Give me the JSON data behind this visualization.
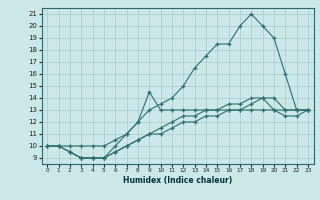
{
  "xlabel": "Humidex (Indice chaleur)",
  "bg_color": "#cce8e8",
  "line_color": "#2d7070",
  "grid_color": "#aacccc",
  "xlim": [
    -0.5,
    23.5
  ],
  "ylim": [
    8.5,
    21.5
  ],
  "yticks": [
    9,
    10,
    11,
    12,
    13,
    14,
    15,
    16,
    17,
    18,
    19,
    20,
    21
  ],
  "xticks": [
    0,
    1,
    2,
    3,
    4,
    5,
    6,
    7,
    8,
    9,
    10,
    11,
    12,
    13,
    14,
    15,
    16,
    17,
    18,
    19,
    20,
    21,
    22,
    23
  ],
  "series": [
    {
      "x": [
        0,
        1,
        2,
        3,
        4,
        5,
        6,
        7,
        8,
        9,
        10,
        11,
        12,
        13,
        14,
        15,
        16,
        17,
        18,
        19,
        20,
        21,
        22,
        23
      ],
      "y": [
        10,
        10,
        10,
        10,
        10,
        10,
        10.5,
        11,
        12,
        13,
        13.5,
        14,
        15,
        16.5,
        17.5,
        18.5,
        18.5,
        20,
        21,
        20,
        19,
        16,
        13,
        13
      ]
    },
    {
      "x": [
        2,
        3,
        4,
        5,
        6,
        7,
        8,
        9,
        10,
        11,
        12,
        13,
        14,
        15,
        16,
        17,
        18,
        19,
        20,
        21,
        22,
        23
      ],
      "y": [
        9.5,
        9,
        9,
        9,
        10,
        11,
        12,
        14.5,
        13,
        13,
        13,
        13,
        13,
        13,
        13,
        13,
        13.5,
        14,
        13,
        13,
        13,
        13
      ]
    },
    {
      "x": [
        0,
        1,
        2,
        3,
        4,
        5,
        6,
        7,
        8,
        9,
        10,
        11,
        12,
        13,
        14,
        15,
        16,
        17,
        18,
        19,
        20,
        21,
        22,
        23
      ],
      "y": [
        10,
        10,
        9.5,
        9,
        9,
        9,
        9.5,
        10,
        10.5,
        11,
        11.5,
        12,
        12.5,
        12.5,
        13,
        13,
        13.5,
        13.5,
        14,
        14,
        14,
        13,
        13,
        13
      ]
    },
    {
      "x": [
        0,
        1,
        2,
        3,
        4,
        5,
        6,
        7,
        8,
        9,
        10,
        11,
        12,
        13,
        14,
        15,
        16,
        17,
        18,
        19,
        20,
        21,
        22,
        23
      ],
      "y": [
        10,
        10,
        9.5,
        9,
        9,
        9,
        9.5,
        10,
        10.5,
        11,
        11,
        11.5,
        12,
        12,
        12.5,
        12.5,
        13,
        13,
        13,
        13,
        13,
        12.5,
        12.5,
        13
      ]
    }
  ]
}
